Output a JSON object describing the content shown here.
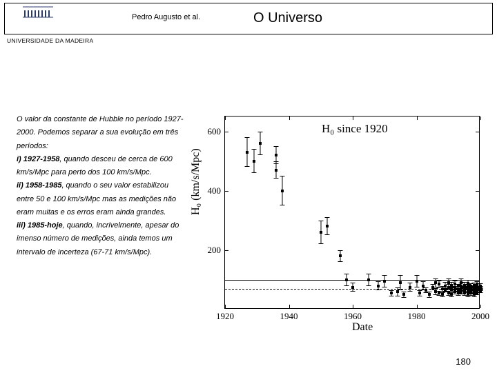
{
  "header": {
    "author": "Pedro Augusto et al.",
    "title": "O Universo",
    "institution": "UNIVERSIDADE DA MADEIRA"
  },
  "body": {
    "p1": "O valor da constante de Hubble no período 1927-2000. Podemos separar a sua evolução em três períodos:",
    "i1_label": "i) 1927-1958",
    "i1_text": ", quando desceu de cerca de 600 km/s/Mpc para perto dos 100 km/s/Mpc.",
    "i2_label": "ii) 1958-1985",
    "i2_text": ", quando o seu valor estabilizou entre 50 e 100 km/s/Mpc mas as medições não eram muitas e os erros eram ainda grandes.",
    "i3_label": "iii) 1985-hoje",
    "i3_text": ", quando, incrivelmente, apesar do imenso número de medições, ainda temos um intervalo de incerteza (67-71 km/s/Mpc)."
  },
  "page_number": "180",
  "hubble_chart": {
    "type": "scatter-errorbar",
    "title": "H₀ since 1920",
    "xlabel": "Date",
    "ylabel": "H₀ (km/s/Mpc)",
    "xlim": [
      1920,
      2000
    ],
    "ylim": [
      0,
      650
    ],
    "xticks": [
      1920,
      1940,
      1960,
      1980,
      2000
    ],
    "yticks": [
      200,
      400,
      600
    ],
    "ref_lines": [
      {
        "y": 100,
        "style": "solid"
      },
      {
        "y": 70,
        "style": "dashed"
      }
    ],
    "background_color": "#ffffff",
    "axis_color": "#000000",
    "point_color": "#000000",
    "marker_size": 4,
    "title_fontsize": 17,
    "label_fontsize": 16,
    "tick_fontsize": 13,
    "points": [
      {
        "x": 1927,
        "y": 530,
        "err": 50
      },
      {
        "x": 1929,
        "y": 500,
        "err": 40
      },
      {
        "x": 1931,
        "y": 560,
        "err": 40
      },
      {
        "x": 1936,
        "y": 520,
        "err": 30
      },
      {
        "x": 1936,
        "y": 470,
        "err": 30
      },
      {
        "x": 1938,
        "y": 400,
        "err": 50
      },
      {
        "x": 1950,
        "y": 260,
        "err": 40
      },
      {
        "x": 1952,
        "y": 280,
        "err": 30
      },
      {
        "x": 1956,
        "y": 180,
        "err": 20
      },
      {
        "x": 1958,
        "y": 100,
        "err": 20
      },
      {
        "x": 1960,
        "y": 75,
        "err": 15
      },
      {
        "x": 1965,
        "y": 100,
        "err": 20
      },
      {
        "x": 1968,
        "y": 80,
        "err": 15
      },
      {
        "x": 1970,
        "y": 95,
        "err": 20
      },
      {
        "x": 1972,
        "y": 55,
        "err": 10
      },
      {
        "x": 1974,
        "y": 60,
        "err": 15
      },
      {
        "x": 1975,
        "y": 90,
        "err": 25
      },
      {
        "x": 1976,
        "y": 50,
        "err": 10
      },
      {
        "x": 1978,
        "y": 75,
        "err": 15
      },
      {
        "x": 1980,
        "y": 95,
        "err": 20
      },
      {
        "x": 1981,
        "y": 55,
        "err": 10
      },
      {
        "x": 1982,
        "y": 80,
        "err": 15
      },
      {
        "x": 1983,
        "y": 65,
        "err": 10
      },
      {
        "x": 1984,
        "y": 50,
        "err": 10
      },
      {
        "x": 1985,
        "y": 75,
        "err": 10
      },
      {
        "x": 1986,
        "y": 60,
        "err": 12
      },
      {
        "x": 1986,
        "y": 90,
        "err": 15
      },
      {
        "x": 1987,
        "y": 55,
        "err": 8
      },
      {
        "x": 1987,
        "y": 85,
        "err": 12
      },
      {
        "x": 1988,
        "y": 70,
        "err": 10
      },
      {
        "x": 1988,
        "y": 50,
        "err": 8
      },
      {
        "x": 1989,
        "y": 80,
        "err": 12
      },
      {
        "x": 1989,
        "y": 65,
        "err": 8
      },
      {
        "x": 1990,
        "y": 75,
        "err": 10
      },
      {
        "x": 1990,
        "y": 55,
        "err": 8
      },
      {
        "x": 1990,
        "y": 90,
        "err": 15
      },
      {
        "x": 1991,
        "y": 68,
        "err": 8
      },
      {
        "x": 1991,
        "y": 82,
        "err": 10
      },
      {
        "x": 1991,
        "y": 50,
        "err": 8
      },
      {
        "x": 1992,
        "y": 72,
        "err": 8
      },
      {
        "x": 1992,
        "y": 60,
        "err": 8
      },
      {
        "x": 1992,
        "y": 85,
        "err": 12
      },
      {
        "x": 1993,
        "y": 65,
        "err": 8
      },
      {
        "x": 1993,
        "y": 78,
        "err": 8
      },
      {
        "x": 1993,
        "y": 55,
        "err": 8
      },
      {
        "x": 1994,
        "y": 70,
        "err": 8
      },
      {
        "x": 1994,
        "y": 80,
        "err": 10
      },
      {
        "x": 1994,
        "y": 58,
        "err": 6
      },
      {
        "x": 1994,
        "y": 90,
        "err": 15
      },
      {
        "x": 1995,
        "y": 67,
        "err": 6
      },
      {
        "x": 1995,
        "y": 75,
        "err": 8
      },
      {
        "x": 1995,
        "y": 55,
        "err": 8
      },
      {
        "x": 1995,
        "y": 82,
        "err": 10
      },
      {
        "x": 1996,
        "y": 70,
        "err": 6
      },
      {
        "x": 1996,
        "y": 62,
        "err": 6
      },
      {
        "x": 1996,
        "y": 78,
        "err": 8
      },
      {
        "x": 1996,
        "y": 50,
        "err": 8
      },
      {
        "x": 1996,
        "y": 88,
        "err": 12
      },
      {
        "x": 1997,
        "y": 68,
        "err": 5
      },
      {
        "x": 1997,
        "y": 73,
        "err": 6
      },
      {
        "x": 1997,
        "y": 60,
        "err": 6
      },
      {
        "x": 1997,
        "y": 80,
        "err": 8
      },
      {
        "x": 1997,
        "y": 55,
        "err": 8
      },
      {
        "x": 1998,
        "y": 70,
        "err": 5
      },
      {
        "x": 1998,
        "y": 65,
        "err": 5
      },
      {
        "x": 1998,
        "y": 75,
        "err": 6
      },
      {
        "x": 1998,
        "y": 58,
        "err": 6
      },
      {
        "x": 1998,
        "y": 82,
        "err": 8
      },
      {
        "x": 1998,
        "y": 50,
        "err": 8
      },
      {
        "x": 1999,
        "y": 69,
        "err": 4
      },
      {
        "x": 1999,
        "y": 72,
        "err": 5
      },
      {
        "x": 1999,
        "y": 64,
        "err": 5
      },
      {
        "x": 1999,
        "y": 78,
        "err": 6
      },
      {
        "x": 1999,
        "y": 55,
        "err": 6
      },
      {
        "x": 1999,
        "y": 85,
        "err": 10
      },
      {
        "x": 2000,
        "y": 70,
        "err": 4
      },
      {
        "x": 2000,
        "y": 67,
        "err": 4
      },
      {
        "x": 2000,
        "y": 73,
        "err": 5
      },
      {
        "x": 2000,
        "y": 60,
        "err": 5
      },
      {
        "x": 2000,
        "y": 80,
        "err": 8
      }
    ]
  }
}
